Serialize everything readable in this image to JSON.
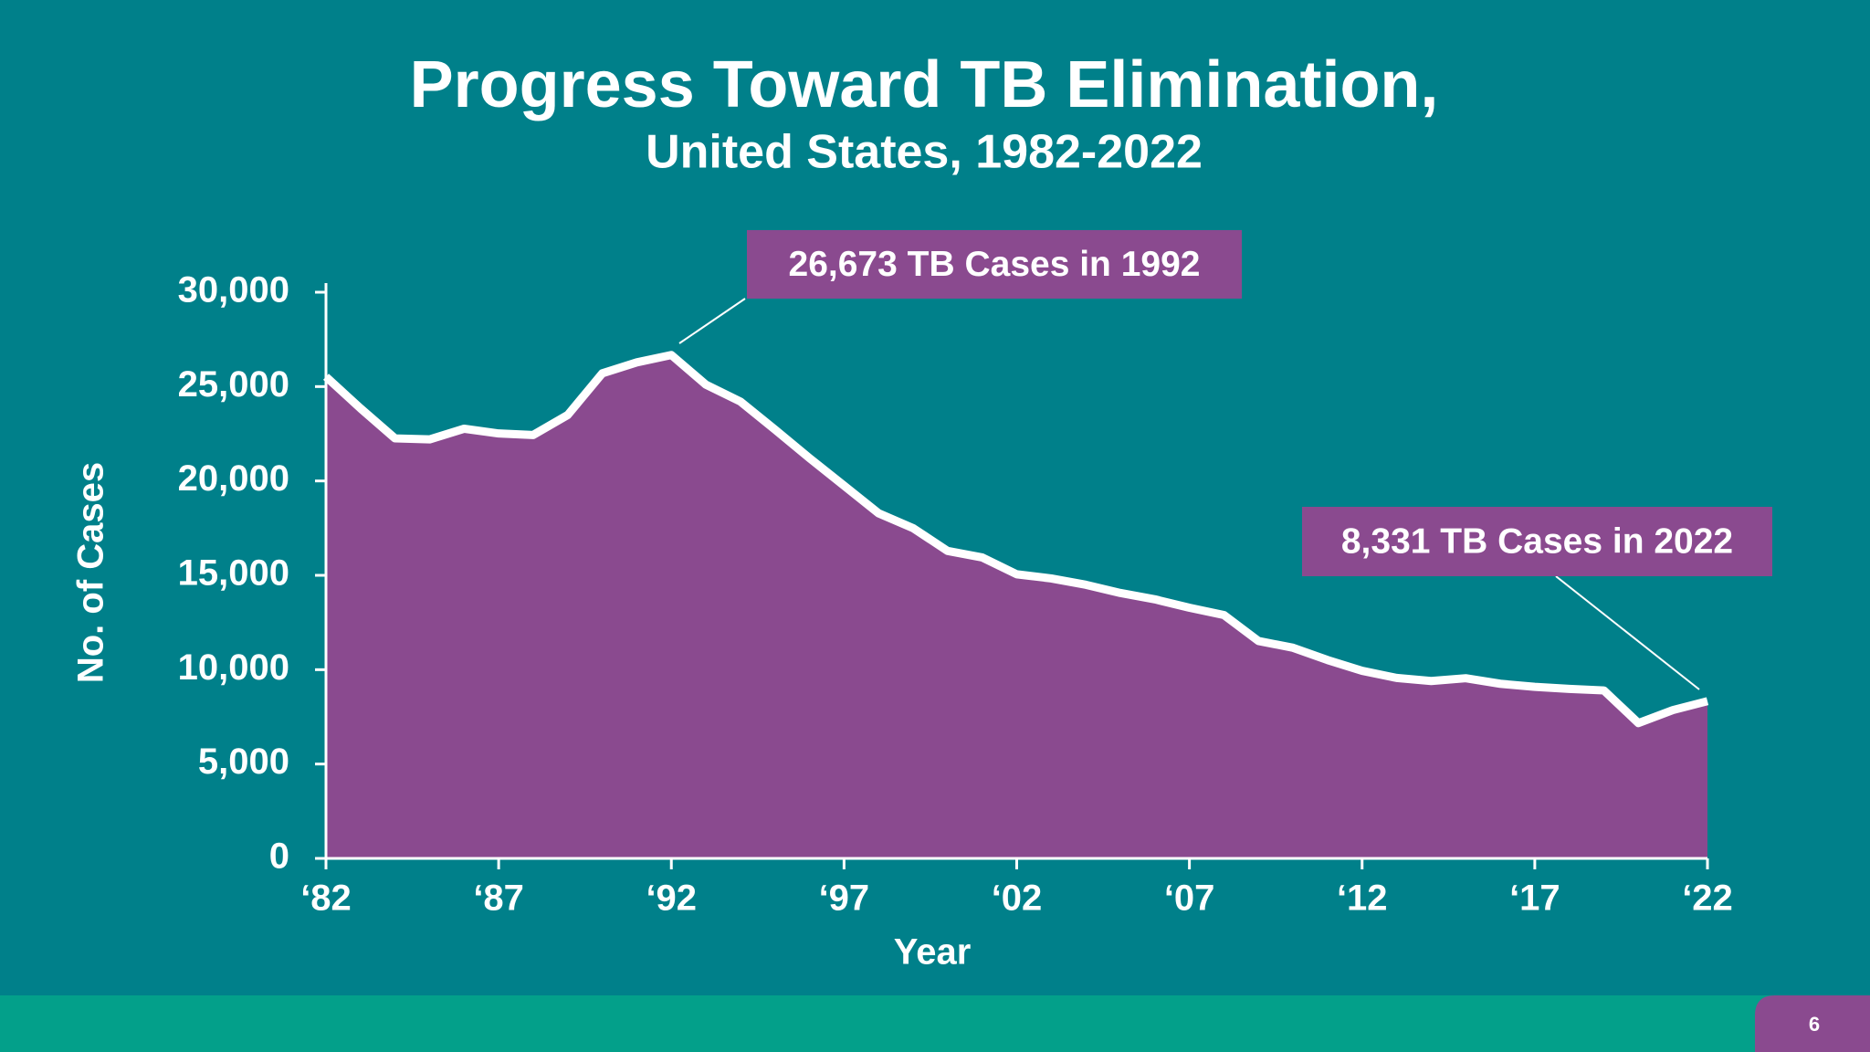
{
  "chart_data": {
    "type": "area",
    "title": "Progress Toward TB Elimination,",
    "subtitle": "United States, 1982-2022",
    "x_label": "Year",
    "y_label": "No. of Cases",
    "x": [
      1982,
      1983,
      1984,
      1985,
      1986,
      1987,
      1988,
      1989,
      1990,
      1991,
      1992,
      1993,
      1994,
      1995,
      1996,
      1997,
      1998,
      1999,
      2000,
      2001,
      2002,
      2003,
      2004,
      2005,
      2006,
      2007,
      2008,
      2009,
      2010,
      2011,
      2012,
      2013,
      2014,
      2015,
      2016,
      2017,
      2018,
      2019,
      2020,
      2021,
      2022
    ],
    "values": [
      25520,
      23846,
      22255,
      22201,
      22768,
      22517,
      22436,
      23495,
      25701,
      26283,
      26673,
      25102,
      24206,
      22726,
      21210,
      19751,
      18287,
      17500,
      16290,
      15945,
      15055,
      14835,
      14499,
      14065,
      13727,
      13282,
      12895,
      11520,
      11161,
      10510,
      9941,
      9561,
      9398,
      9547,
      9254,
      9091,
      8980,
      8900,
      7170,
      7860,
      8331
    ],
    "color": "#8a4a8f",
    "line_color": "#ffffff",
    "xlim": [
      1982,
      2022
    ],
    "xticks": [
      {
        "value": 1982,
        "label": "‘82"
      },
      {
        "value": 1987,
        "label": "‘87"
      },
      {
        "value": 1992,
        "label": "‘92"
      },
      {
        "value": 1997,
        "label": "‘97"
      },
      {
        "value": 2002,
        "label": "‘02"
      },
      {
        "value": 2007,
        "label": "‘07"
      },
      {
        "value": 2012,
        "label": "‘12"
      },
      {
        "value": 2017,
        "label": "‘17"
      },
      {
        "value": 2022,
        "label": "‘22"
      }
    ],
    "ylim": [
      0,
      30000
    ],
    "yticks": [
      0,
      {
        "value": 5000,
        "label": "5,000"
      },
      {
        "value": 10000,
        "label": "10,000"
      },
      {
        "value": 15000,
        "label": "15,000"
      },
      {
        "value": 20000,
        "label": "20,000"
      },
      {
        "value": 25000,
        "label": "25,000"
      },
      {
        "value": 30000,
        "label": "30,000"
      }
    ],
    "annotations": [
      "26,673 TB Cases in 1992",
      "8,331 TB Cases in 2022"
    ]
  },
  "page_number": "6"
}
